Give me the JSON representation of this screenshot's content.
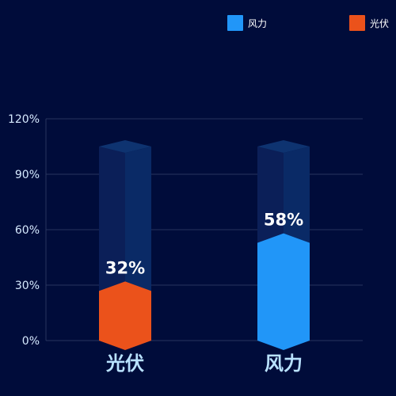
{
  "colors": {
    "background": "#000c3a",
    "wind": "#2196f8",
    "solar": "#eb521b",
    "track_front": "#0b1f58",
    "track_side": "#0a2a66",
    "track_top": "#0e3370",
    "grid": "#28355e",
    "tick_label": "#d6eaff",
    "category_label": "#b9e2ff",
    "value_label": "#ffffff"
  },
  "legend": [
    {
      "name": "风力",
      "color": "#2196f8"
    },
    {
      "name": "光伏",
      "color": "#eb521b"
    }
  ],
  "chart_data": {
    "type": "bar",
    "categories": [
      "光伏",
      "风力"
    ],
    "values": [
      32,
      58
    ],
    "value_labels": [
      "32%",
      "58%"
    ],
    "background_max": 105,
    "ylim": [
      0,
      120
    ],
    "yticks": [
      0,
      30,
      60,
      90,
      120
    ],
    "ytick_labels": [
      "0%",
      "30%",
      "60%",
      "90%",
      "120%"
    ],
    "grid": true,
    "legend_position": "top-right"
  }
}
